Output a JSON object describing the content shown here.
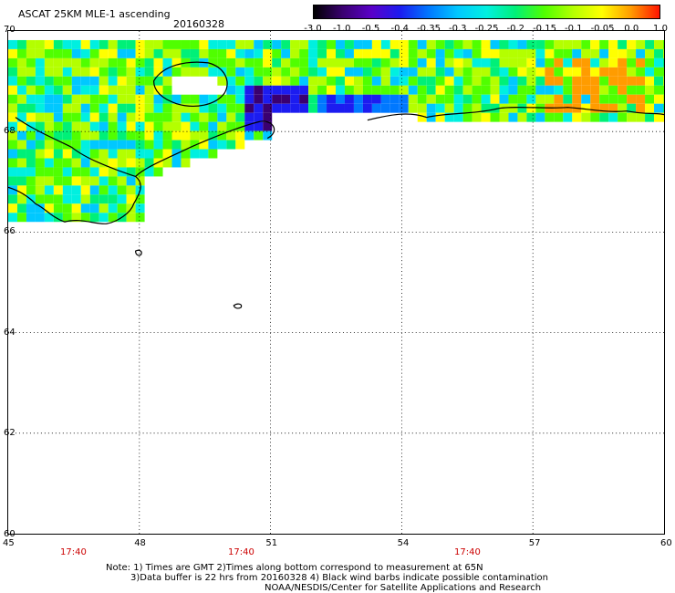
{
  "header": {
    "title": "ASCAT 25KM MLE-1 ascending",
    "date": "20160328"
  },
  "colorbar": {
    "ticks": [
      "-3.0",
      "-1.0",
      "-0.5",
      "-0.4",
      "-0.35",
      "-0.3",
      "-0.25",
      "-0.2",
      "-0.15",
      "-0.1",
      "-0.05",
      "0.0",
      "1.0"
    ],
    "colors": [
      "#000000",
      "#3a0070",
      "#5a00c8",
      "#1c1cf0",
      "#0078ff",
      "#00c8ff",
      "#00f0e0",
      "#00f078",
      "#50ff00",
      "#b4ff00",
      "#ffff00",
      "#ff9c00",
      "#ff1400"
    ]
  },
  "map": {
    "lat_labels": [
      "70",
      "68",
      "66",
      "64",
      "62",
      "60"
    ],
    "lon_labels": [
      "45",
      "48",
      "51",
      "54",
      "57",
      "60"
    ],
    "lat_range": [
      60,
      70
    ],
    "lon_range": [
      45,
      60
    ],
    "grid": "dotted"
  },
  "times": [
    "17:40",
    "17:40",
    "17:40"
  ],
  "notes": {
    "line1": "Note: 1) Times are GMT 2)Times along bottom correspond to measurement at 65N",
    "line2": "3)Data buffer is 22 hrs from 20160328 4) Black wind barbs indicate possible contamination",
    "line3": "NOAA/NESDIS/Center for Satellite Applications and Research"
  }
}
